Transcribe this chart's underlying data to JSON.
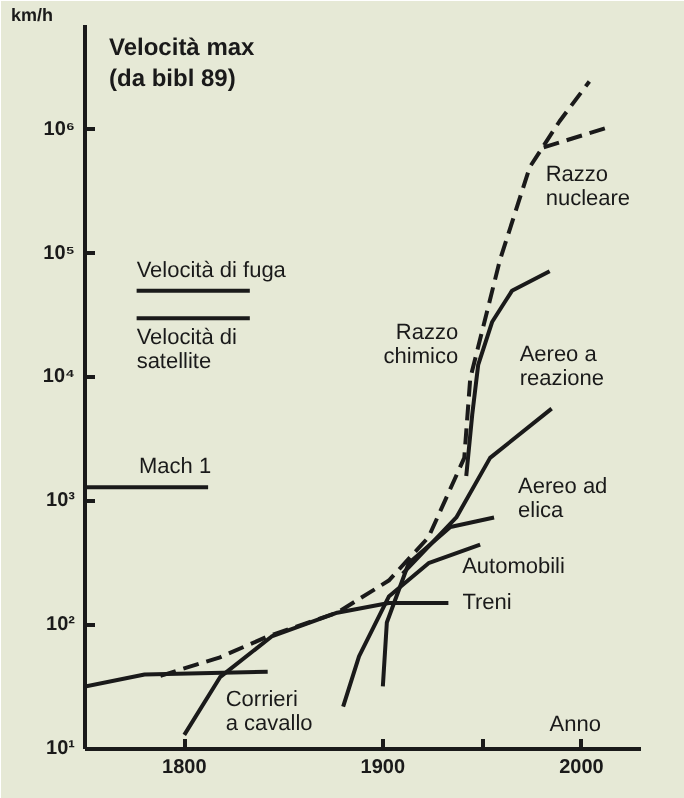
{
  "chart_data": {
    "type": "line",
    "title": "Velocità max\n(da bibl 89)",
    "ylabel": "km/h",
    "xlabel": "Anno",
    "log": "y",
    "grid": false,
    "legend": false,
    "xlim": [
      1750,
      2030
    ],
    "xticks": [
      1800,
      1900,
      {
        "value": 1950,
        "label": null
      },
      2000
    ],
    "ylim": [
      10,
      7000000
    ],
    "yticks": [
      {
        "value": 10,
        "label": "10¹"
      },
      {
        "value": 100,
        "label": "10²"
      },
      {
        "value": 1000,
        "label": "10³"
      },
      {
        "value": 10000,
        "label": "10⁴"
      },
      {
        "value": 100000,
        "label": "10⁵"
      },
      {
        "value": 1000000,
        "label": "10⁶"
      }
    ],
    "series": [
      {
        "name": "Velocità di fuga",
        "color": "#1a1a1a",
        "x": [
          1776,
          1833
        ],
        "values": [
          50000,
          50000
        ]
      },
      {
        "name": "Velocità di\nsatellite",
        "color": "#1a1a1a",
        "x": [
          1776,
          1833
        ],
        "values": [
          30000,
          30000
        ]
      },
      {
        "name": "Mach 1",
        "color": "#1a1a1a",
        "x": [
          1750,
          1812
        ],
        "values": [
          1300,
          1300
        ]
      },
      {
        "name": "Corrieri\na cavallo",
        "color": "#1a1a1a",
        "x": [
          1750,
          1780,
          1842
        ],
        "values": [
          32,
          40,
          42
        ]
      },
      {
        "name": "Treni",
        "color": "#1a1a1a",
        "x": [
          1800,
          1818,
          1844,
          1877,
          1903,
          1933
        ],
        "values": [
          13,
          38,
          81,
          126,
          151,
          151
        ]
      },
      {
        "color": "#1a1a1a",
        "line_style": "dashed",
        "x": [
          1788,
          1818,
          1842,
          1877,
          1903,
          1923,
          1941,
          1944,
          1959,
          1974,
          1989,
          2004
        ],
        "values": [
          39,
          55,
          81,
          126,
          229,
          513,
          2240,
          9800,
          89000,
          500000,
          1170000,
          2450000
        ]
      },
      {
        "name": "Razzo\nnucleare",
        "color": "#1a1a1a",
        "line_style": "dashed",
        "x": [
          1981,
          2014
        ],
        "values": [
          720000,
          1050000
        ]
      },
      {
        "name": "Automobili",
        "color": "#1a1a1a",
        "x": [
          1880,
          1888,
          1903,
          1923,
          1949
        ],
        "values": [
          22,
          56,
          170,
          316,
          447
        ]
      },
      {
        "name": "Aereo ad\nelica",
        "color": "#1a1a1a",
        "x": [
          1900,
          1902,
          1913,
          1934,
          1956
        ],
        "values": [
          32,
          105,
          316,
          620,
          740
        ]
      },
      {
        "name": "Aereo a\nreazione",
        "color": "#1a1a1a",
        "x": [
          1910,
          1937,
          1954,
          1985
        ],
        "values": [
          260,
          740,
          2240,
          5600
        ]
      },
      {
        "name": "Razzo\nchimico",
        "color": "#1a1a1a",
        "x": [
          1942,
          1945,
          1948,
          1955,
          1965,
          1984
        ],
        "values": [
          1600,
          5000,
          12600,
          28000,
          50000,
          72000
        ]
      }
    ]
  }
}
